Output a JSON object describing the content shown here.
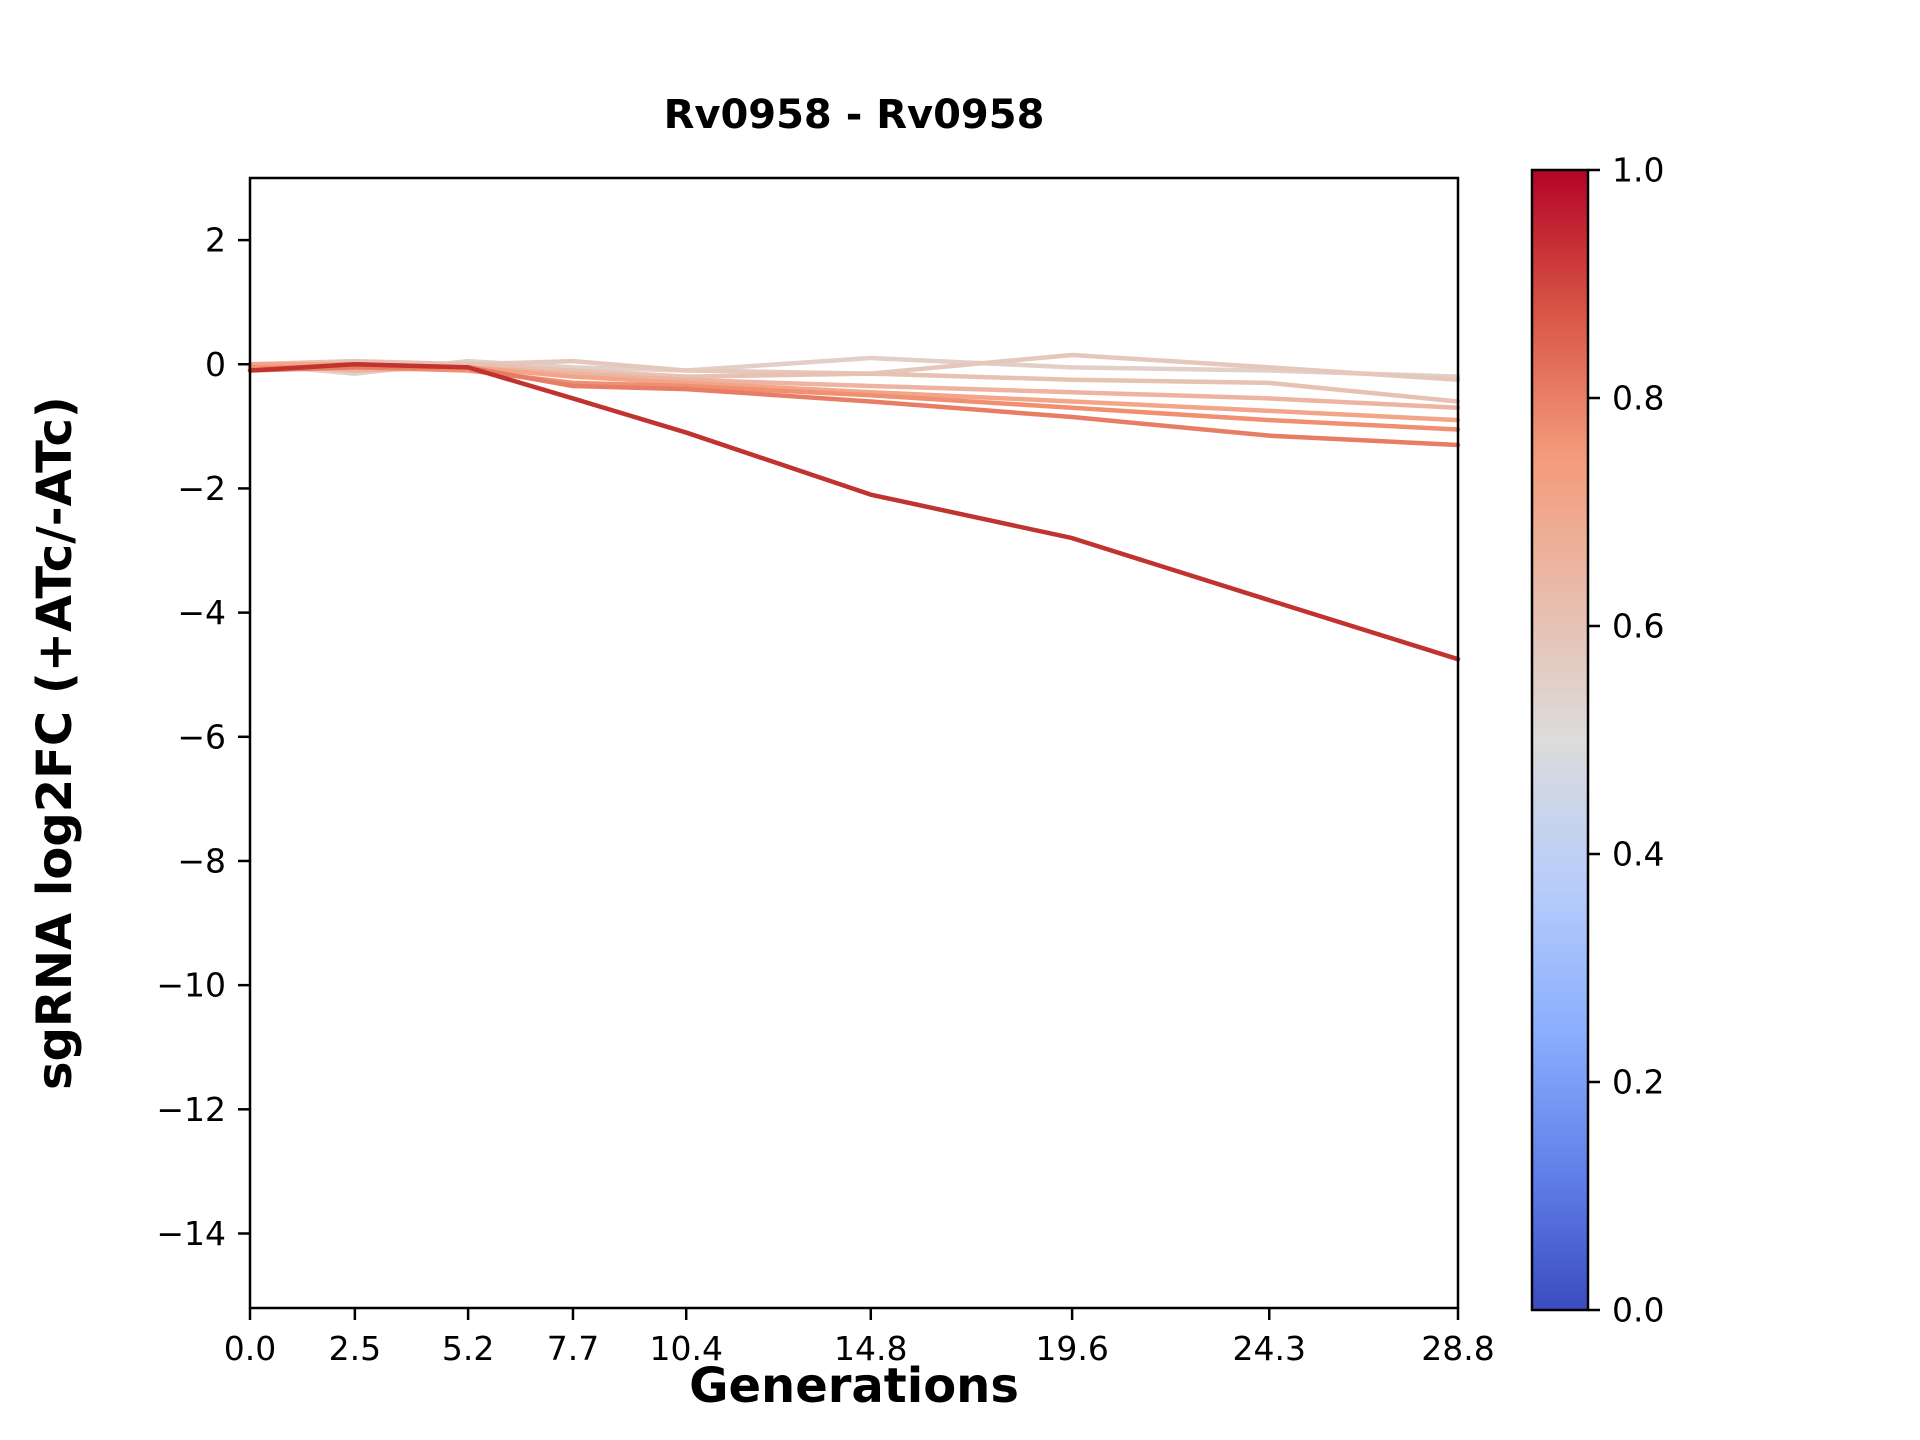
{
  "chart": {
    "title": "Rv0958 - Rv0958",
    "xlabel": "Generations",
    "ylabel": "sgRNA log2FC (+ATc/-ATc)"
  },
  "chart_data": {
    "type": "line",
    "title": "Rv0958 - Rv0958",
    "xlabel": "Generations",
    "ylabel": "sgRNA log2FC (+ATc/-ATc)",
    "x": [
      0.0,
      2.5,
      5.2,
      7.7,
      10.4,
      14.8,
      19.6,
      24.3,
      28.8
    ],
    "x_tick_labels": [
      "0.0",
      "2.5",
      "5.2",
      "7.7",
      "10.4",
      "14.8",
      "19.6",
      "24.3",
      "28.8"
    ],
    "y_tick_values": [
      2,
      0,
      -2,
      -4,
      -6,
      -8,
      -10,
      -12,
      -14
    ],
    "y_tick_labels": [
      "2",
      "0",
      "−2",
      "−4",
      "−6",
      "−8",
      "−10",
      "−12",
      "−14"
    ],
    "xlim": [
      0,
      28.8
    ],
    "ylim": [
      -15.2,
      3.0
    ],
    "grid": false,
    "legend": "none",
    "series": [
      {
        "name": "line-1",
        "colormap_value": 0.55,
        "color": "#e2cfc7",
        "values": [
          0.0,
          -0.15,
          0.05,
          -0.05,
          -0.1,
          0.1,
          -0.05,
          -0.1,
          -0.2
        ]
      },
      {
        "name": "line-2",
        "colormap_value": 0.58,
        "color": "#e5c8bb",
        "values": [
          -0.05,
          0.0,
          0.0,
          0.05,
          -0.1,
          -0.15,
          0.15,
          -0.05,
          -0.25
        ]
      },
      {
        "name": "line-3",
        "colormap_value": 0.6,
        "color": "#e7c2b2",
        "values": [
          0.0,
          0.05,
          0.0,
          -0.1,
          -0.2,
          -0.15,
          -0.25,
          -0.3,
          -0.6
        ]
      },
      {
        "name": "line-4",
        "colormap_value": 0.65,
        "color": "#edb5a1",
        "values": [
          0.0,
          -0.1,
          -0.05,
          -0.15,
          -0.25,
          -0.35,
          -0.45,
          -0.55,
          -0.7
        ]
      },
      {
        "name": "line-5",
        "colormap_value": 0.72,
        "color": "#f3a58a",
        "values": [
          0.0,
          0.0,
          -0.05,
          -0.2,
          -0.3,
          -0.45,
          -0.6,
          -0.75,
          -0.9
        ]
      },
      {
        "name": "line-6",
        "colormap_value": 0.78,
        "color": "#f09070",
        "values": [
          -0.05,
          -0.05,
          -0.1,
          -0.3,
          -0.35,
          -0.5,
          -0.7,
          -0.9,
          -1.05
        ]
      },
      {
        "name": "line-7",
        "colormap_value": 0.82,
        "color": "#e77d64",
        "values": [
          -0.1,
          -0.05,
          -0.05,
          -0.35,
          -0.4,
          -0.6,
          -0.85,
          -1.15,
          -1.3
        ]
      },
      {
        "name": "line-8",
        "colormap_value": 0.97,
        "color": "#c0332f",
        "values": [
          -0.1,
          0.0,
          -0.05,
          -0.55,
          -1.1,
          -2.1,
          -2.8,
          -3.8,
          -4.75
        ]
      }
    ],
    "colorbar": {
      "min": 0.0,
      "max": 1.0,
      "tick_values": [
        1.0,
        0.8,
        0.6,
        0.4,
        0.2,
        0.0
      ],
      "tick_labels": [
        "1.0",
        "0.8",
        "0.6",
        "0.4",
        "0.2",
        "0.0"
      ],
      "colormap": "coolwarm",
      "stops": [
        {
          "pos": 0.0,
          "color": "#3b4cc0"
        },
        {
          "pos": 0.125,
          "color": "#6282ea"
        },
        {
          "pos": 0.25,
          "color": "#8db0fe"
        },
        {
          "pos": 0.375,
          "color": "#b8cdfa"
        },
        {
          "pos": 0.5,
          "color": "#dddcdc"
        },
        {
          "pos": 0.625,
          "color": "#e9bcab"
        },
        {
          "pos": 0.75,
          "color": "#f49a7b"
        },
        {
          "pos": 0.875,
          "color": "#d85646"
        },
        {
          "pos": 1.0,
          "color": "#b40426"
        }
      ]
    }
  }
}
